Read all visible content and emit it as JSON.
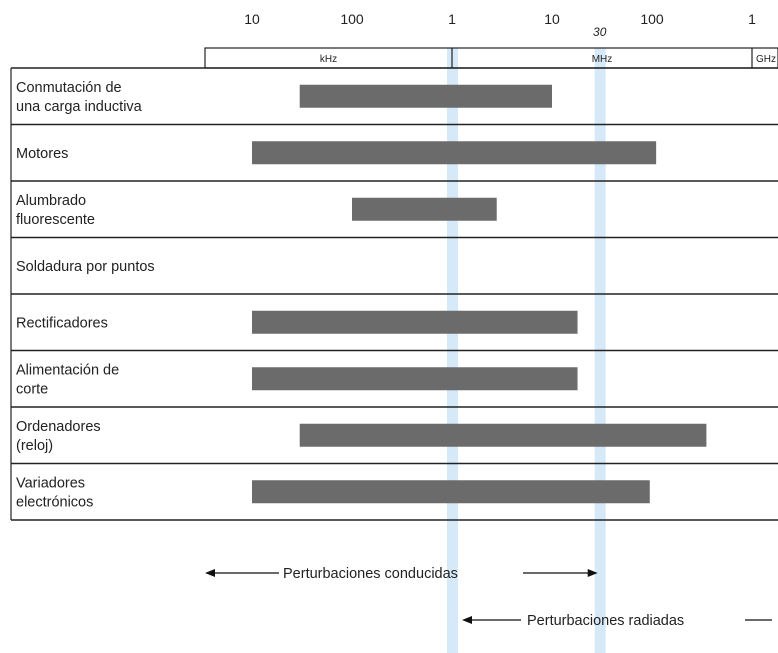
{
  "chart_data": {
    "type": "bar",
    "orientation": "horizontal",
    "scale": "log",
    "x_tick_labels": [
      {
        "value": 10,
        "label": "10"
      },
      {
        "value": 100,
        "label": "100"
      },
      {
        "value": 1000,
        "label": "1"
      },
      {
        "value": 10000,
        "label": "10"
      },
      {
        "value": 30000,
        "label": "30"
      },
      {
        "value": 100000,
        "label": "100"
      },
      {
        "value": 1000000,
        "label": "1"
      }
    ],
    "unit_bands": [
      {
        "label": "kHz",
        "from": 3,
        "to": 1000
      },
      {
        "label": "MHz",
        "from": 1000,
        "to": 1000000
      },
      {
        "label": "GHz",
        "from": 1000000,
        "to": 1300000
      }
    ],
    "categories": [
      "Conmutación de una carga inductiva",
      "Motores",
      "Alumbrado fluorescente",
      "Soldadura por puntos",
      "Rectificadores",
      "Alimentación de corte",
      "Ordenadores (reloj)",
      "Variadores electrónicos"
    ],
    "category_lines": [
      [
        "Conmutación de",
        "una carga inductiva"
      ],
      [
        "Motores"
      ],
      [
        "Alumbrado",
        "fluorescente"
      ],
      [
        "Soldadura por puntos"
      ],
      [
        "Rectificadores"
      ],
      [
        "Alimentación de",
        "corte"
      ],
      [
        "Ordenadores",
        "(reloj)"
      ],
      [
        "Variadores",
        "electrónicos"
      ]
    ],
    "ranges": [
      {
        "from": 30,
        "to": 10000
      },
      {
        "from": 10,
        "to": 110000
      },
      {
        "from": 100,
        "to": 2800
      },
      null,
      {
        "from": 10,
        "to": 18000
      },
      {
        "from": 10,
        "to": 18000
      },
      {
        "from": 30,
        "to": 350000
      },
      {
        "from": 10,
        "to": 95000
      }
    ],
    "highlight_lines": [
      1000,
      30000
    ],
    "annotations": [
      {
        "text": "Perturbaciones conducidas",
        "from": 10,
        "to": 30000
      },
      {
        "text": "Perturbaciones radiadas",
        "from": 1000,
        "to": 1300000
      }
    ],
    "bar_color": "#6b6b6b",
    "highlight_color": "#d6e9f8"
  }
}
